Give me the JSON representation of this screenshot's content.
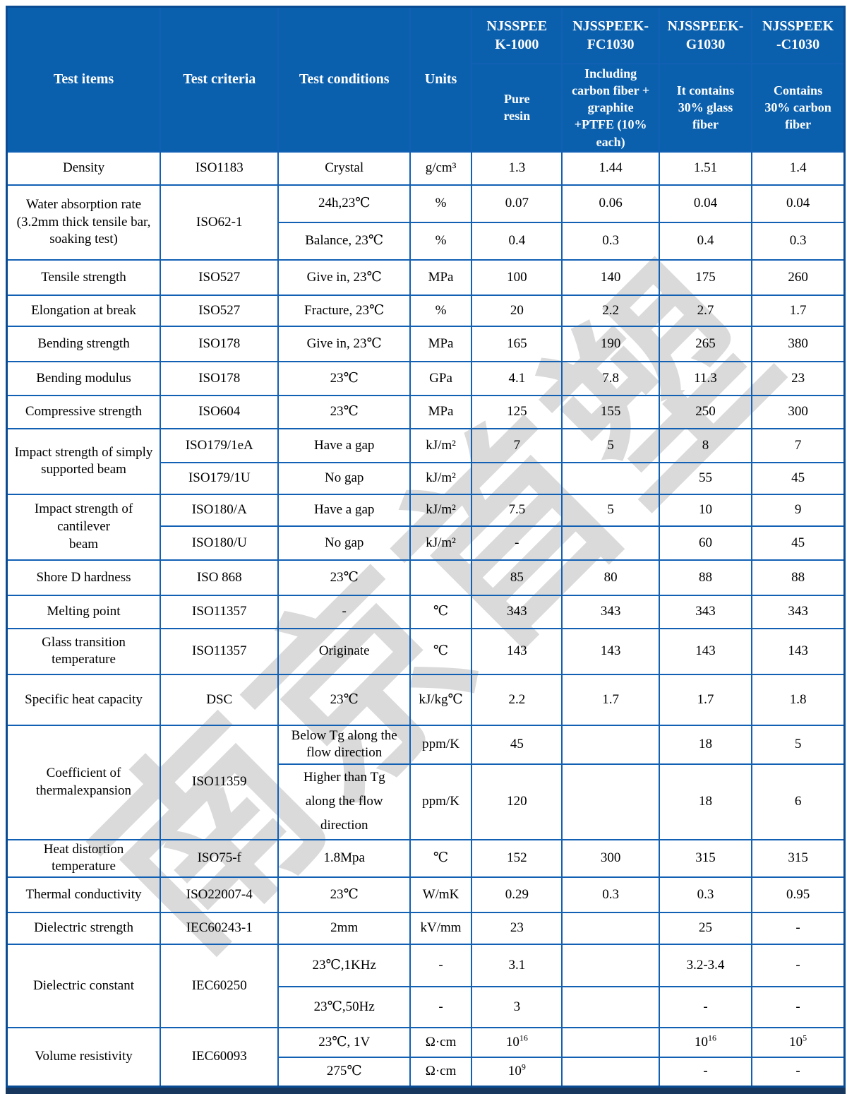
{
  "watermark": "南京首塑",
  "colors": {
    "header_bg": "#0B60AE",
    "grid_line": "#1160B4",
    "outer_border": "#0A4C94",
    "bottom_bar": "#17375E",
    "watermark_gray": "#DADADA"
  },
  "header": {
    "test_items": "Test items",
    "test_criteria": "Test criteria",
    "test_conditions": "Test conditions",
    "units": "Units",
    "products": [
      {
        "name": "NJSSPEE\nK-1000",
        "desc": "Pure\nresin"
      },
      {
        "name": "NJSSPEEK-\nFC1030",
        "desc": "Including\ncarbon fiber +\ngraphite\n+PTFE (10%\neach)"
      },
      {
        "name": "NJSSPEEK-\nG1030",
        "desc": "It contains\n30% glass\nfiber"
      },
      {
        "name": "NJSSPEEK\n-C1030",
        "desc": "Contains\n30% carbon\nfiber"
      }
    ]
  },
  "rows": [
    {
      "item": "Density",
      "criteria": "ISO1183",
      "cond": "Crystal",
      "unit": "g/cm³",
      "v": [
        "1.3",
        "1.44",
        "1.51",
        "1.4"
      ]
    },
    {
      "item": "Water absorption rate\n(3.2mm thick tensile bar,\nsoaking test)",
      "criteria": "ISO62-1",
      "cond": "24h,23℃",
      "unit": "%",
      "v": [
        "0.07",
        "0.06",
        "0.04",
        "0.04"
      ]
    },
    {
      "cond": "Balance, 23℃",
      "unit": "%",
      "v": [
        "0.4",
        "0.3",
        "0.4",
        "0.3"
      ]
    },
    {
      "item": "Tensile strength",
      "criteria": "ISO527",
      "cond": "Give in, 23℃",
      "unit": "MPa",
      "v": [
        "100",
        "140",
        "175",
        "260"
      ]
    },
    {
      "item": "Elongation at break",
      "criteria": "ISO527",
      "cond": "Fracture, 23℃",
      "unit": "%",
      "v": [
        "20",
        "2.2",
        "2.7",
        "1.7"
      ]
    },
    {
      "item": "Bending strength",
      "criteria": "ISO178",
      "cond": "Give in, 23℃",
      "unit": "MPa",
      "v": [
        "165",
        "190",
        "265",
        "380"
      ]
    },
    {
      "item": "Bending modulus",
      "criteria": "ISO178",
      "cond": "23℃",
      "unit": "GPa",
      "v": [
        "4.1",
        "7.8",
        "11.3",
        "23"
      ]
    },
    {
      "item": "Compressive strength",
      "criteria": "ISO604",
      "cond": "23℃",
      "unit": "MPa",
      "v": [
        "125",
        "155",
        "250",
        "300"
      ]
    },
    {
      "item": "Impact strength of simply\nsupported beam",
      "criteria": "ISO179/1eA",
      "cond": "Have a gap",
      "unit": "kJ/m²",
      "v": [
        "7",
        "5",
        "8",
        "7"
      ]
    },
    {
      "criteria": "ISO179/1U",
      "cond": "No gap",
      "unit": "kJ/m²",
      "v": [
        "",
        "",
        "55",
        "45"
      ]
    },
    {
      "item": "Impact strength of cantilever\nbeam",
      "criteria": "ISO180/A",
      "cond": "Have a gap",
      "unit": "kJ/m²",
      "v": [
        "7.5",
        "5",
        "10",
        "9"
      ]
    },
    {
      "criteria": "ISO180/U",
      "cond": "No gap",
      "unit": "kJ/m²",
      "v": [
        "-",
        "",
        "60",
        "45"
      ]
    },
    {
      "item": "Shore D hardness",
      "criteria": "ISO 868",
      "cond": "23℃",
      "unit": "",
      "v": [
        "85",
        "80",
        "88",
        "88"
      ]
    },
    {
      "item": "Melting point",
      "criteria": "ISO11357",
      "cond": "-",
      "unit": "℃",
      "v": [
        "343",
        "343",
        "343",
        "343"
      ]
    },
    {
      "item": "Glass transition\ntemperature",
      "criteria": "ISO11357",
      "cond": "Originate",
      "unit": "℃",
      "v": [
        "143",
        "143",
        "143",
        "143"
      ]
    },
    {
      "item": "Specific heat capacity",
      "criteria": "DSC",
      "cond": "23℃",
      "unit": "kJ/kg℃",
      "v": [
        "2.2",
        "1.7",
        "1.7",
        "1.8"
      ]
    },
    {
      "item": "Coefficient of\nthermalexpansion",
      "criteria": "ISO11359",
      "cond": "Below Tg along the\nflow direction",
      "unit": "ppm/K",
      "v": [
        "45",
        "",
        "18",
        "5"
      ]
    },
    {
      "cond": "Higher than Tg\nalong the flow\ndirection",
      "unit": "ppm/K",
      "v": [
        "120",
        "",
        "18",
        "6"
      ]
    },
    {
      "item": "Heat distortion\ntemperature",
      "criteria": "ISO75-f",
      "cond": "1.8Mpa",
      "unit": "℃",
      "v": [
        "152",
        "300",
        "315",
        "315"
      ]
    },
    {
      "item": "Thermal conductivity",
      "criteria": "ISO22007-4",
      "cond": "23℃",
      "unit": "W/mK",
      "v": [
        "0.29",
        "0.3",
        "0.3",
        "0.95"
      ]
    },
    {
      "item": "Dielectric strength",
      "criteria": "IEC60243-1",
      "cond": "2mm",
      "unit": "kV/mm",
      "v": [
        "23",
        "",
        "25",
        "-"
      ]
    },
    {
      "item": "Dielectric constant",
      "criteria": "IEC60250",
      "cond": "23℃,1KHz",
      "unit": "-",
      "v": [
        "3.1",
        "",
        "3.2-3.4",
        "-"
      ]
    },
    {
      "cond": "23℃,50Hz",
      "unit": "-",
      "v": [
        "3",
        "",
        "-",
        "-"
      ]
    },
    {
      "item": "Volume resistivity",
      "criteria": "IEC60093",
      "cond": "23℃, 1V",
      "unit": "Ω·cm",
      "v": [
        "10^16",
        "",
        "10^16",
        "10^5"
      ]
    },
    {
      "cond": "275℃",
      "unit": "Ω·cm",
      "v": [
        "10^9",
        "",
        "-",
        "-"
      ]
    }
  ]
}
